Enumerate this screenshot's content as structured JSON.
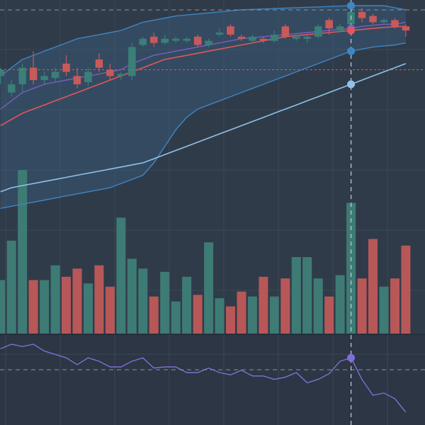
{
  "colors": {
    "background": "#2c3644",
    "main_pane_background": "#303b4a",
    "grid": "#3c4757",
    "up": "#3a7f78",
    "down": "#c85a5a",
    "up_volume": "#3e7b75",
    "down_volume": "#b85757",
    "ma_fast": "#7a5fc4",
    "ma_mid": "#e2585a",
    "ma_slow": "#8fc3e8",
    "band": "#3f86c3",
    "band_fill": "#3a5e7e",
    "oscillator": "#7f6fd4",
    "crosshair": "#c9ced6",
    "price_line": "#e05555"
  },
  "chart_data": {
    "type": "candlestick",
    "bar_count": 38,
    "grid": true,
    "legend": "none",
    "price_range": [
      0,
      100
    ],
    "volume_range": [
      0,
      100
    ],
    "oscillator_range": [
      0,
      100
    ],
    "reference_price": 69,
    "crosshair_bar": 32,
    "candles": [
      {
        "o": 66,
        "h": 70,
        "l": 62,
        "c": 69
      },
      {
        "o": 58,
        "h": 64,
        "l": 56,
        "c": 62
      },
      {
        "o": 62,
        "h": 72,
        "l": 58,
        "c": 70
      },
      {
        "o": 70,
        "h": 78,
        "l": 62,
        "c": 64
      },
      {
        "o": 64,
        "h": 68,
        "l": 62,
        "c": 66
      },
      {
        "o": 65,
        "h": 70,
        "l": 63,
        "c": 68
      },
      {
        "o": 72,
        "h": 76,
        "l": 66,
        "c": 68
      },
      {
        "o": 66,
        "h": 70,
        "l": 60,
        "c": 62
      },
      {
        "o": 63,
        "h": 70,
        "l": 61,
        "c": 68
      },
      {
        "o": 74,
        "h": 77,
        "l": 68,
        "c": 70
      },
      {
        "o": 69,
        "h": 72,
        "l": 64,
        "c": 66
      },
      {
        "o": 66,
        "h": 68,
        "l": 64,
        "c": 67
      },
      {
        "o": 66,
        "h": 82,
        "l": 64,
        "c": 80
      },
      {
        "o": 81,
        "h": 85,
        "l": 80,
        "c": 84
      },
      {
        "o": 85,
        "h": 87,
        "l": 80,
        "c": 82
      },
      {
        "o": 82,
        "h": 86,
        "l": 81,
        "c": 84
      },
      {
        "o": 83,
        "h": 85,
        "l": 82,
        "c": 84
      },
      {
        "o": 83,
        "h": 85,
        "l": 82,
        "c": 84
      },
      {
        "o": 85,
        "h": 86,
        "l": 80,
        "c": 81
      },
      {
        "o": 81,
        "h": 84,
        "l": 80,
        "c": 83
      },
      {
        "o": 86,
        "h": 89,
        "l": 85,
        "c": 87
      },
      {
        "o": 90,
        "h": 91,
        "l": 85,
        "c": 86
      },
      {
        "o": 85,
        "h": 86,
        "l": 83,
        "c": 84
      },
      {
        "o": 83,
        "h": 86,
        "l": 82,
        "c": 85
      },
      {
        "o": 84,
        "h": 85,
        "l": 82,
        "c": 83
      },
      {
        "o": 83,
        "h": 88,
        "l": 82,
        "c": 86
      },
      {
        "o": 90,
        "h": 91,
        "l": 84,
        "c": 85
      },
      {
        "o": 84,
        "h": 86,
        "l": 83,
        "c": 85
      },
      {
        "o": 84,
        "h": 86,
        "l": 82,
        "c": 85
      },
      {
        "o": 85,
        "h": 91,
        "l": 84,
        "c": 90
      },
      {
        "o": 93,
        "h": 94,
        "l": 86,
        "c": 89
      },
      {
        "o": 88,
        "h": 91,
        "l": 87,
        "c": 90
      },
      {
        "o": 91,
        "h": 99,
        "l": 88,
        "c": 97
      },
      {
        "o": 97,
        "h": 99,
        "l": 92,
        "c": 94
      },
      {
        "o": 95,
        "h": 96,
        "l": 91,
        "c": 92
      },
      {
        "o": 92,
        "h": 94,
        "l": 91,
        "c": 93
      },
      {
        "o": 93,
        "h": 94,
        "l": 89,
        "c": 90
      },
      {
        "o": 90,
        "h": 91,
        "l": 85,
        "c": 88
      }
    ],
    "volume": [
      33,
      57,
      100,
      33,
      33,
      42,
      35,
      40,
      31,
      42,
      29,
      71,
      46,
      40,
      23,
      38,
      20,
      35,
      24,
      56,
      22,
      17,
      26,
      23,
      35,
      23,
      34,
      47,
      47,
      34,
      23,
      36,
      80,
      34,
      58,
      29,
      34,
      54
    ],
    "ma_fast": [
      50,
      54,
      58,
      60,
      62,
      63,
      64,
      65,
      66,
      67,
      68,
      69,
      72,
      74,
      76,
      77,
      78,
      79,
      80,
      81,
      82,
      83,
      84,
      84.5,
      85,
      85.5,
      86,
      86.5,
      87,
      87.5,
      88,
      88.5,
      89,
      90,
      90.5,
      91,
      91,
      92
    ],
    "ma_mid": [
      42,
      45,
      48,
      50,
      52,
      54,
      56,
      58,
      60,
      62,
      64,
      66,
      68,
      70,
      72,
      74,
      75,
      76,
      77,
      78,
      79,
      80,
      81,
      82,
      83,
      84,
      85,
      85.5,
      86,
      86.5,
      87,
      87.5,
      88,
      88.5,
      89,
      89.5,
      89.8,
      90
    ],
    "ma_slow": [
      10,
      12,
      13,
      14,
      15,
      16,
      17,
      18,
      19,
      20,
      21,
      22,
      23,
      24,
      26,
      28,
      30,
      32,
      34,
      36,
      38,
      40,
      42,
      44,
      46,
      48,
      50,
      52,
      54,
      56,
      58,
      60,
      62,
      64,
      66,
      68,
      70,
      72
    ],
    "band_upper": [
      66,
      70,
      74,
      76,
      78,
      80,
      82,
      84,
      85,
      86,
      87,
      88,
      90,
      92,
      93,
      94,
      95,
      95.5,
      96,
      96.5,
      97,
      97.5,
      98,
      98.2,
      98.4,
      98.6,
      98.8,
      99,
      99.2,
      99.4,
      99.6,
      99.8,
      100,
      100,
      100,
      100,
      99,
      98
    ],
    "band_lower": [
      2,
      3,
      4,
      5,
      6,
      7,
      8,
      9,
      10,
      11,
      12,
      14,
      16,
      18,
      24,
      32,
      40,
      46,
      50,
      52,
      54,
      56,
      58,
      60,
      62,
      64,
      66,
      68,
      70,
      72,
      74,
      76,
      78,
      79,
      80,
      80.5,
      81,
      82
    ],
    "oscillator": [
      62,
      70,
      66,
      70,
      58,
      52,
      46,
      34,
      46,
      40,
      30,
      30,
      40,
      46,
      28,
      30,
      30,
      20,
      20,
      28,
      20,
      16,
      24,
      14,
      14,
      8,
      12,
      20,
      2,
      8,
      18,
      40,
      46,
      8,
      -20,
      -16,
      -26,
      -50
    ]
  }
}
